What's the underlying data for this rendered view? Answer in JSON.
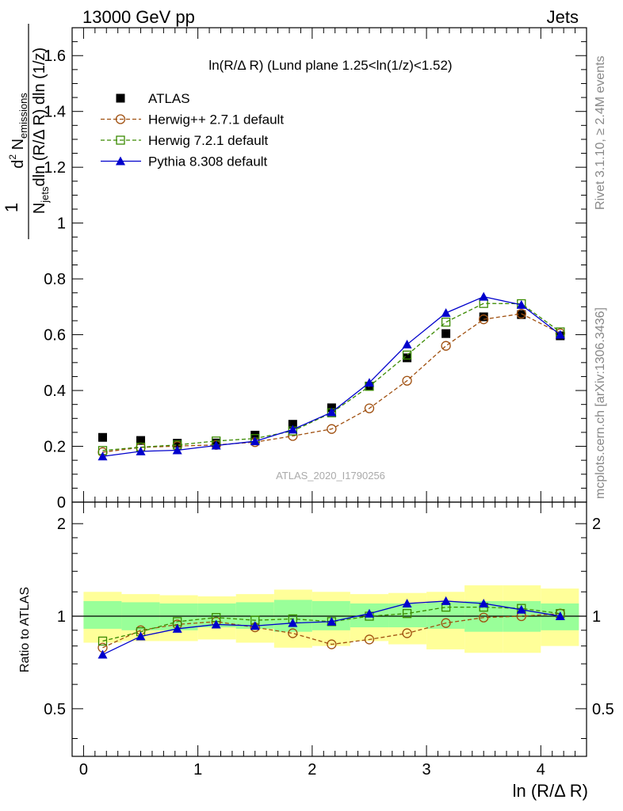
{
  "header": {
    "left": "13000 GeV pp",
    "right": "Jets"
  },
  "side_labels": {
    "rivet": "Rivet 3.1.10, ≥ 2.4M events",
    "mcplots": "mcplots.cern.ch [arXiv:1306.3436]"
  },
  "chart_data": {
    "type": "line",
    "title": "ln(R/Δ R) (Lund plane 1.25<ln(1/z)<1.52)",
    "watermark": "ATLAS_2020_I1790256",
    "xlabel": "ln (R/Δ R)",
    "ylabel_main": {
      "pre": "1",
      "den_a": "N",
      "den_a_sub": "jets",
      "den_b": "dln (R/Δ R) dln (1/z)",
      "num_a": "d",
      "num_sup": "2",
      "num_b": " N",
      "num_sub": "emissions"
    },
    "ylabel_ratio": "Ratio to ATLAS",
    "xlim": [
      -0.1,
      4.4
    ],
    "ylim_main": [
      0,
      1.7
    ],
    "ylim_ratio": [
      0.35,
      2.35
    ],
    "x_ticks": [
      "0",
      "1",
      "2",
      "3",
      "4"
    ],
    "y_ticks_main": [
      "0",
      "0.2",
      "0.4",
      "0.6",
      "0.8",
      "1",
      "1.2",
      "1.4",
      "1.6"
    ],
    "y_ticks_ratio": [
      "0.5",
      "1",
      "2"
    ],
    "x": [
      0.167,
      0.5,
      0.82,
      1.16,
      1.5,
      1.83,
      2.17,
      2.5,
      2.83,
      3.17,
      3.5,
      3.83,
      4.17
    ],
    "bin_edges": [
      0,
      0.333,
      0.667,
      1.0,
      1.333,
      1.667,
      2.0,
      2.333,
      2.667,
      3.0,
      3.333,
      3.667,
      4.0,
      4.333
    ],
    "series": [
      {
        "name": "ATLAS",
        "color": "#000000",
        "marker": "square-filled",
        "values": [
          0.232,
          0.221,
          0.211,
          0.212,
          0.24,
          0.279,
          0.338,
          0.416,
          0.517,
          0.604,
          0.664,
          0.672,
          0.596
        ]
      },
      {
        "name": "Herwig++ 2.7.1 default",
        "color": "#a05010",
        "marker": "circle-open",
        "line": "dashed",
        "values": [
          0.179,
          0.196,
          0.201,
          0.205,
          0.215,
          0.237,
          0.262,
          0.336,
          0.435,
          0.56,
          0.655,
          0.675,
          0.605
        ],
        "ratio": [
          0.79,
          0.9,
          0.94,
          0.96,
          0.92,
          0.88,
          0.81,
          0.84,
          0.88,
          0.95,
          0.99,
          1.0,
          1.02
        ]
      },
      {
        "name": "Herwig 7.2.1 default",
        "color": "#3a8a00",
        "marker": "square-open",
        "line": "dashed",
        "values": [
          0.185,
          0.197,
          0.205,
          0.219,
          0.228,
          0.255,
          0.32,
          0.415,
          0.527,
          0.645,
          0.712,
          0.711,
          0.61
        ],
        "ratio": [
          0.83,
          0.89,
          0.96,
          0.99,
          0.97,
          0.98,
          0.96,
          1.0,
          1.02,
          1.07,
          1.07,
          1.06,
          1.02
        ]
      },
      {
        "name": "Pythia 8.308 default",
        "color": "#0000cc",
        "marker": "triangle-filled",
        "line": "solid",
        "values": [
          0.164,
          0.182,
          0.186,
          0.203,
          0.218,
          0.26,
          0.322,
          0.428,
          0.565,
          0.678,
          0.736,
          0.707,
          0.6
        ],
        "ratio": [
          0.75,
          0.86,
          0.91,
          0.94,
          0.93,
          0.95,
          0.96,
          1.02,
          1.1,
          1.12,
          1.1,
          1.05,
          1.0
        ]
      }
    ],
    "ratio_bands": {
      "inner_color": "#99ff99",
      "outer_color": "#ffff99",
      "inner_lo": [
        0.91,
        0.9,
        0.9,
        0.92,
        0.91,
        0.89,
        0.9,
        0.92,
        0.92,
        0.91,
        0.89,
        0.89,
        0.9
      ],
      "inner_hi": [
        1.12,
        1.11,
        1.1,
        1.1,
        1.11,
        1.13,
        1.12,
        1.1,
        1.1,
        1.11,
        1.12,
        1.12,
        1.1
      ],
      "outer_lo": [
        0.82,
        0.83,
        0.83,
        0.84,
        0.82,
        0.79,
        0.8,
        0.83,
        0.81,
        0.78,
        0.76,
        0.76,
        0.8
      ],
      "outer_hi": [
        1.2,
        1.18,
        1.17,
        1.16,
        1.18,
        1.22,
        1.2,
        1.18,
        1.19,
        1.2,
        1.26,
        1.26,
        1.23
      ]
    }
  }
}
